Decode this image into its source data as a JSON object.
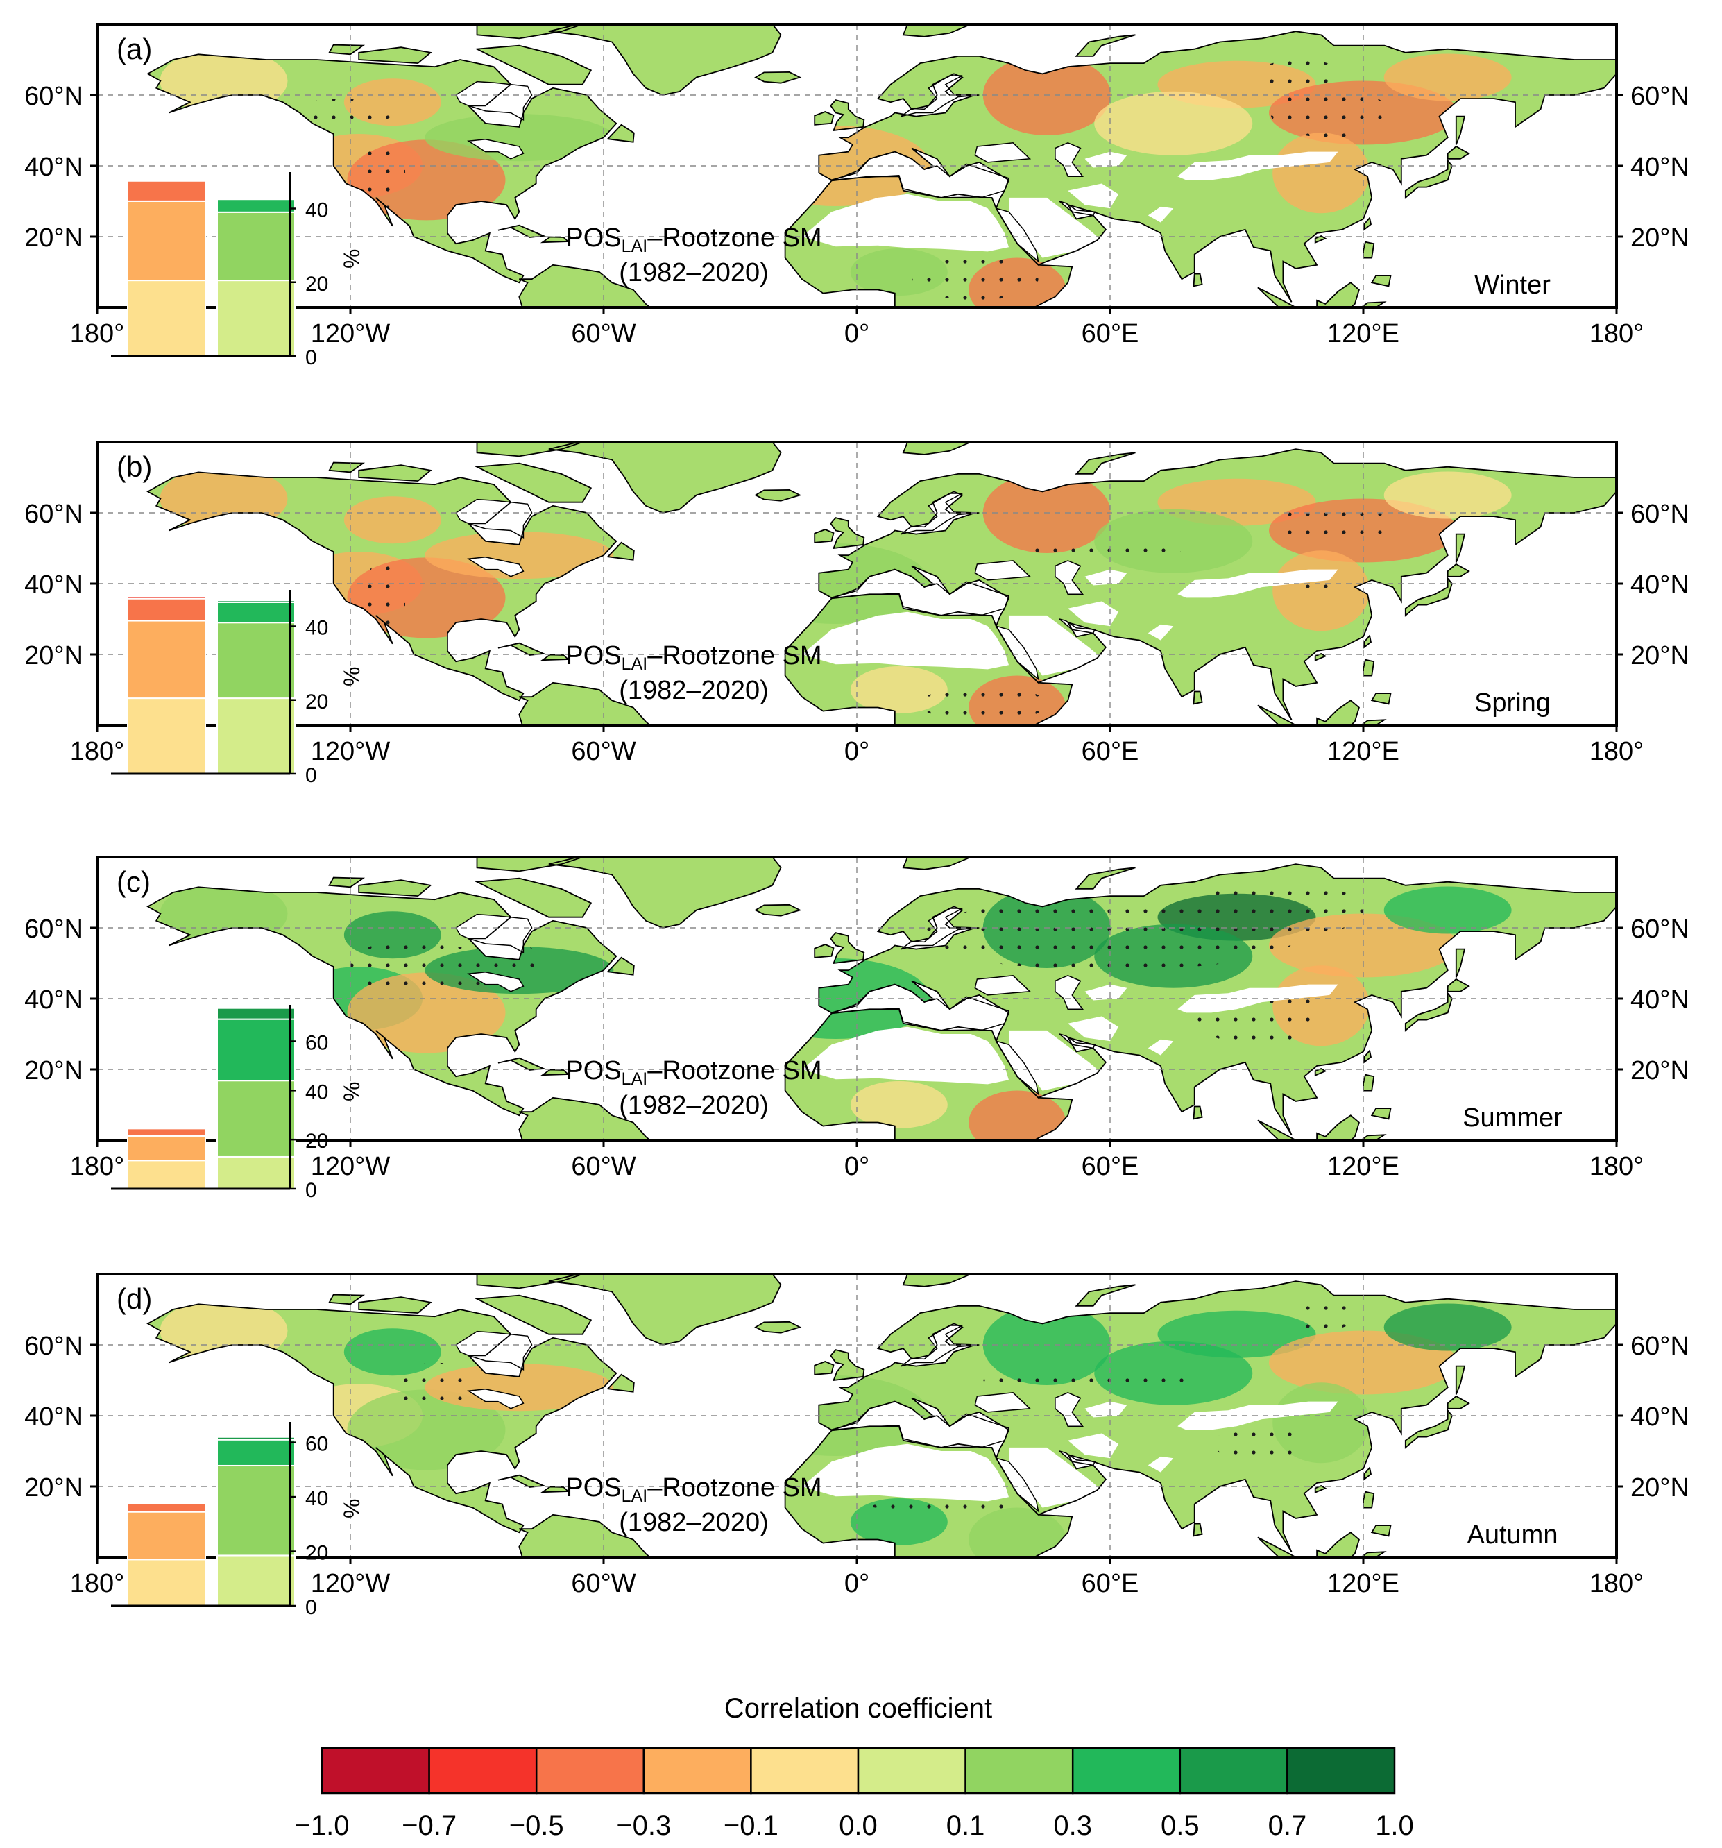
{
  "panels": [
    {
      "label": "(a)",
      "season": "Winter",
      "variable": "POS",
      "subscript": "LAI",
      "suffix": "–Rootzone SM",
      "period": "(1982–2020)",
      "inset": {
        "ticks": [
          "0",
          "20",
          "40"
        ],
        "ymax": 48,
        "unit": "%",
        "negative": [
          {
            "value": 20.5,
            "color": "#fde08e"
          },
          {
            "value": 21.5,
            "color": "#fdae5e"
          },
          {
            "value": 5.5,
            "color": "#f7744a"
          },
          {
            "value": 0.5,
            "color": "#fbd5c8"
          }
        ],
        "positive": [
          {
            "value": 20.5,
            "color": "#d4ec8a"
          },
          {
            "value": 18.5,
            "color": "#91d461"
          },
          {
            "value": 3.5,
            "color": "#22b85a"
          }
        ]
      }
    },
    {
      "label": "(b)",
      "season": "Spring",
      "variable": "POS",
      "subscript": "LAI",
      "suffix": "–Rootzone SM",
      "period": "(1982–2020)",
      "inset": {
        "ticks": [
          "0",
          "20",
          "40"
        ],
        "ymax": 48,
        "unit": "%",
        "negative": [
          {
            "value": 20.5,
            "color": "#fde08e"
          },
          {
            "value": 21,
            "color": "#fdae5e"
          },
          {
            "value": 6,
            "color": "#f7744a"
          },
          {
            "value": 0.5,
            "color": "#ef3b2c"
          }
        ],
        "positive": [
          {
            "value": 20.5,
            "color": "#d4ec8a"
          },
          {
            "value": 20.5,
            "color": "#91d461"
          },
          {
            "value": 5.5,
            "color": "#22b85a"
          },
          {
            "value": 0.5,
            "color": "#1a9a4a"
          }
        ]
      }
    },
    {
      "label": "(c)",
      "season": "Summer",
      "variable": "POS",
      "subscript": "LAI",
      "suffix": "–Rootzone SM",
      "period": "(1982–2020)",
      "inset": {
        "ticks": [
          "0",
          "20",
          "40",
          "60"
        ],
        "ymax": 72,
        "unit": "%",
        "negative": [
          {
            "value": 11.5,
            "color": "#fde08e"
          },
          {
            "value": 10,
            "color": "#fdae5e"
          },
          {
            "value": 3,
            "color": "#f7744a"
          },
          {
            "value": 0.5,
            "color": "#ef3b2c"
          }
        ],
        "positive": [
          {
            "value": 13,
            "color": "#d4ec8a"
          },
          {
            "value": 31,
            "color": "#91d461"
          },
          {
            "value": 25,
            "color": "#22b85a"
          },
          {
            "value": 4.5,
            "color": "#1a9a4a"
          }
        ]
      }
    },
    {
      "label": "(d)",
      "season": "Autumn",
      "variable": "POS",
      "subscript": "LAI",
      "suffix": "–Rootzone SM",
      "period": "(1982–2020)",
      "inset": {
        "ticks": [
          "0",
          "20",
          "40",
          "60"
        ],
        "ymax": 65,
        "unit": "%",
        "negative": [
          {
            "value": 17,
            "color": "#fde08e"
          },
          {
            "value": 17.5,
            "color": "#fdae5e"
          },
          {
            "value": 3,
            "color": "#f7744a"
          },
          {
            "value": 0.5,
            "color": "#ef3b2c"
          }
        ],
        "positive": [
          {
            "value": 18.5,
            "color": "#d4ec8a"
          },
          {
            "value": 33,
            "color": "#91d461"
          },
          {
            "value": 9.5,
            "color": "#22b85a"
          },
          {
            "value": 1,
            "color": "#1a9a4a"
          }
        ]
      }
    }
  ],
  "map": {
    "lon_range": [
      -180,
      180
    ],
    "lat_range": [
      0,
      80
    ],
    "lon_ticks": [
      {
        "value": -180,
        "label": "180°"
      },
      {
        "value": -120,
        "label": "120°W"
      },
      {
        "value": -60,
        "label": "60°W"
      },
      {
        "value": 0,
        "label": "0°"
      },
      {
        "value": 60,
        "label": "60°E"
      },
      {
        "value": 120,
        "label": "120°E"
      },
      {
        "value": 180,
        "label": "180°"
      }
    ],
    "lat_ticks": [
      {
        "value": 20,
        "label": "20°N"
      },
      {
        "value": 40,
        "label": "40°N"
      },
      {
        "value": 60,
        "label": "60°N"
      }
    ],
    "ocean_color": "#ffffff",
    "desert_color": "#ffffff",
    "coast_color": "#000000"
  },
  "colorbar": {
    "title": "Correlation coefficient",
    "bounds": [
      "−1.0",
      "−0.7",
      "−0.5",
      "−0.3",
      "−0.1",
      "0.0",
      "0.1",
      "0.3",
      "0.5",
      "0.7",
      "1.0"
    ],
    "colors": [
      "#c0102a",
      "#f5332a",
      "#f7744a",
      "#fdae5e",
      "#fde08e",
      "#d4ec8a",
      "#91d461",
      "#22b85a",
      "#1a9a4a",
      "#0c6b34"
    ]
  }
}
